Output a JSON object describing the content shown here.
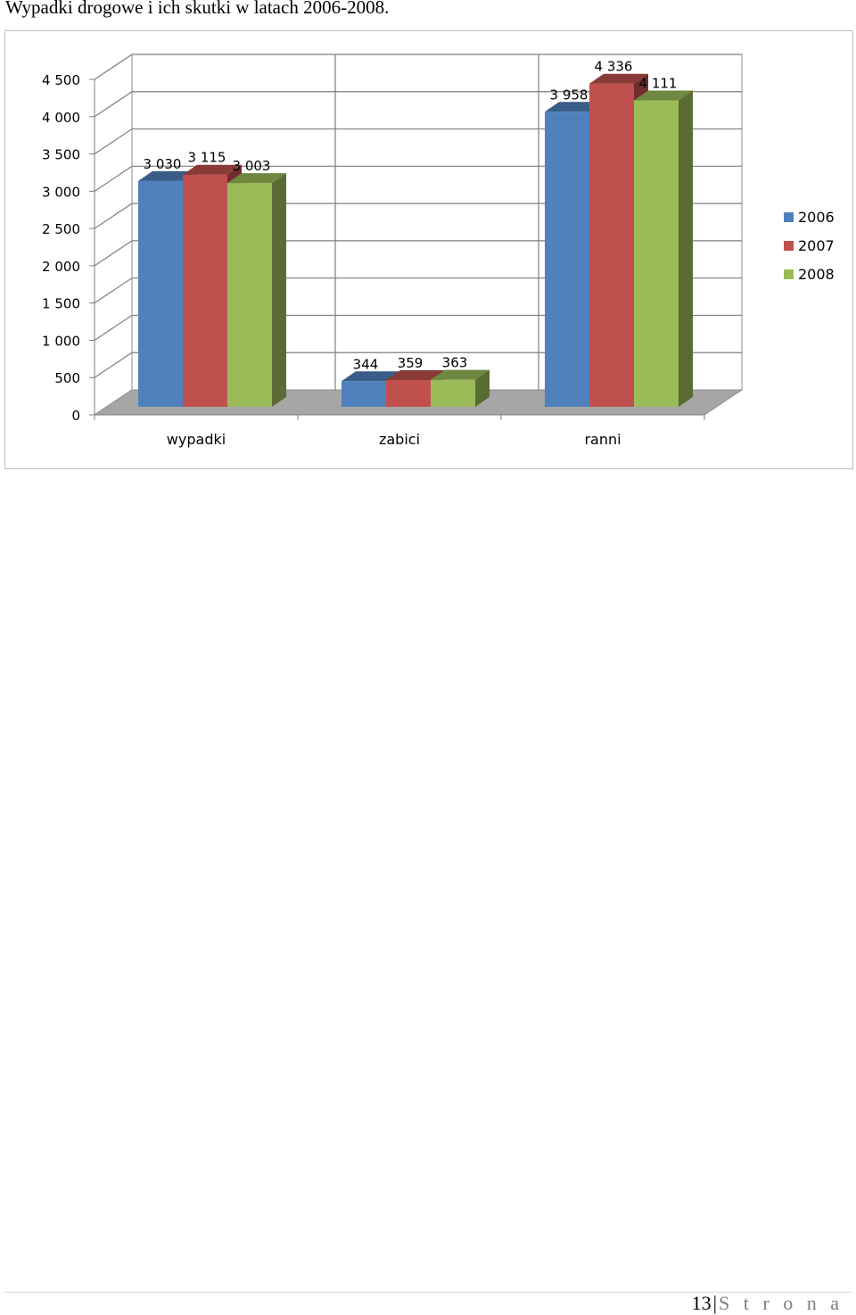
{
  "document": {
    "heading": "Wypadki drogowe i ich skutki w latach 2006-2008.",
    "footer": {
      "page_number": "13",
      "separator": "|",
      "page_word": "S t r o n a"
    }
  },
  "chart_data": {
    "type": "bar",
    "style": "3d-clustered-column",
    "categories": [
      "wypadki",
      "zabici",
      "ranni"
    ],
    "series": [
      {
        "name": "2006",
        "values": [
          3030,
          344,
          3958
        ],
        "labels": [
          "3 030",
          "344",
          "3 958"
        ],
        "color": "#4f81bd"
      },
      {
        "name": "2007",
        "values": [
          3115,
          359,
          4336
        ],
        "labels": [
          "3 115",
          "359",
          "4 336"
        ],
        "color": "#c0504d"
      },
      {
        "name": "2008",
        "values": [
          3003,
          363,
          4111
        ],
        "labels": [
          "3 003",
          "363",
          "4 111"
        ],
        "color": "#9bbb59"
      }
    ],
    "yticks": [
      "0",
      "500",
      "1 000",
      "1 500",
      "2 000",
      "2 500",
      "3 000",
      "3 500",
      "4 000",
      "4 500"
    ],
    "ylim": [
      0,
      4500
    ],
    "ystep": 500,
    "grid": true,
    "legend_position": "right",
    "colors": {
      "floor": "#a6a6a6",
      "gridline": "#7f7f7f",
      "axis_text": "#000000"
    }
  }
}
